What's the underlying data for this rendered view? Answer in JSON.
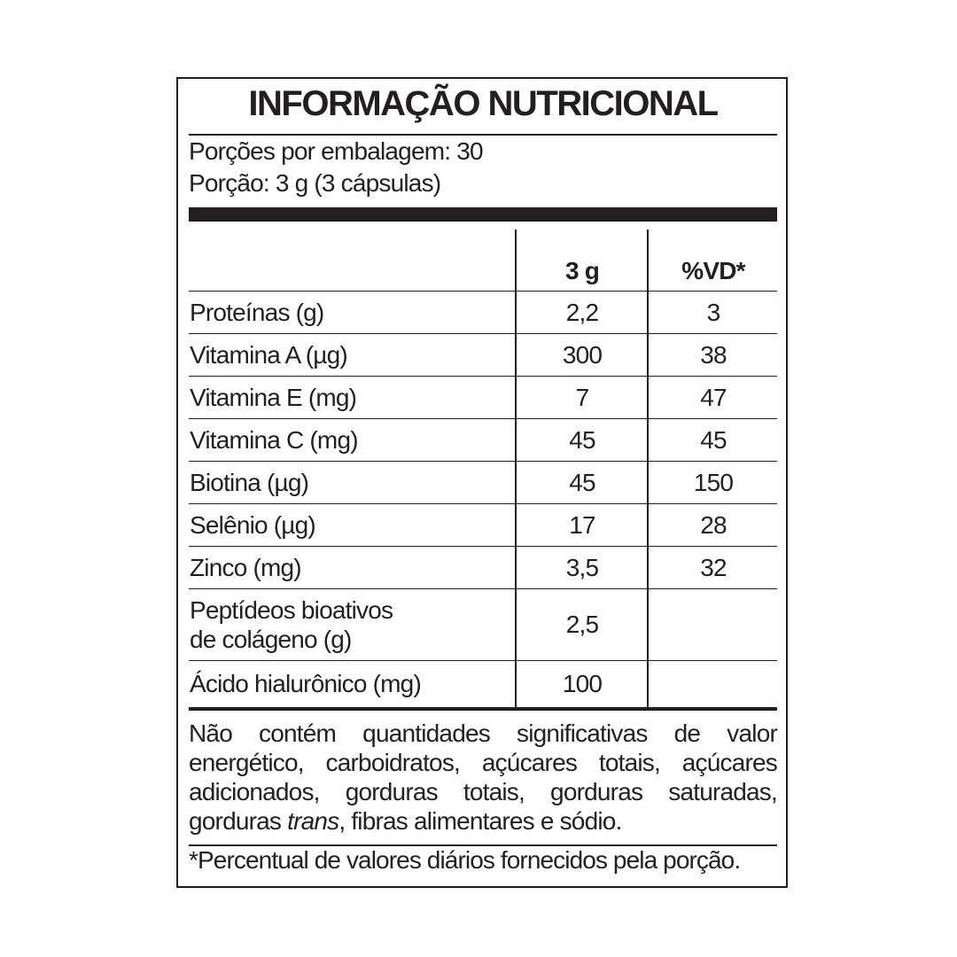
{
  "title": "INFORMAÇÃO NUTRICIONAL",
  "servings": [
    "Porções por embalagem: 30",
    "Porção: 3 g (3 cápsulas)"
  ],
  "table": {
    "header": {
      "amount": "3 g",
      "dv": "%VD*"
    },
    "rows": [
      [
        "Proteínas (g)",
        "2,2",
        "3"
      ],
      [
        "Vitamina A (µg)",
        "300",
        "38"
      ],
      [
        "Vitamina E (mg)",
        "7",
        "47"
      ],
      [
        "Vitamina C (mg)",
        "45",
        "45"
      ],
      [
        "Biotina (µg)",
        "45",
        "150"
      ],
      [
        "Selênio (µg)",
        "17",
        "28"
      ],
      [
        "Zinco (mg)",
        "3,5",
        "32"
      ],
      [
        "Peptídeos bioativos\nde colágeno (g)",
        "2,5"
      ],
      [
        "Ácido hialurônico (mg)",
        "100"
      ]
    ]
  },
  "note": [
    "Não contém quantidades significativas de valor energético, carboidratos, açúcares totais, açúcares adicionados, gorduras totais, gorduras saturadas, gorduras ",
    "trans",
    ", fibras alimentares e sódio."
  ],
  "footnote": "*Percentual de valores diários fornecidos pela porção."
}
